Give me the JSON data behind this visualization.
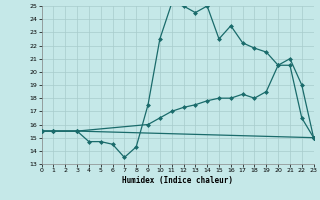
{
  "xlabel": "Humidex (Indice chaleur)",
  "xlim": [
    0,
    23
  ],
  "ylim": [
    13,
    25
  ],
  "xticks": [
    0,
    1,
    2,
    3,
    4,
    5,
    6,
    7,
    8,
    9,
    10,
    11,
    12,
    13,
    14,
    15,
    16,
    17,
    18,
    19,
    20,
    21,
    22,
    23
  ],
  "yticks": [
    13,
    14,
    15,
    16,
    17,
    18,
    19,
    20,
    21,
    22,
    23,
    24,
    25
  ],
  "bg_color": "#c5e8e8",
  "line_color": "#1a6b6b",
  "grid_color": "#a8cccc",
  "curve1_x": [
    0,
    1,
    3,
    4,
    5,
    6,
    7,
    8,
    9,
    10,
    11,
    12,
    13,
    14,
    15,
    16,
    17,
    18,
    19,
    20,
    21,
    22,
    23
  ],
  "curve1_y": [
    15.5,
    15.5,
    15.5,
    14.7,
    14.7,
    14.5,
    13.5,
    14.3,
    17.5,
    22.5,
    25.2,
    25.0,
    24.5,
    25.0,
    22.5,
    23.5,
    22.2,
    21.8,
    21.5,
    20.5,
    21.0,
    19.0,
    15.0
  ],
  "curve2_x": [
    0,
    1,
    3,
    9,
    10,
    11,
    12,
    13,
    14,
    15,
    16,
    17,
    18,
    19,
    20,
    21,
    22,
    23
  ],
  "curve2_y": [
    15.5,
    15.5,
    15.5,
    16.0,
    16.5,
    17.0,
    17.3,
    17.5,
    17.8,
    18.0,
    18.0,
    18.3,
    18.0,
    18.5,
    20.5,
    20.5,
    16.5,
    15.0
  ],
  "curve3_x": [
    0,
    1,
    3,
    23
  ],
  "curve3_y": [
    15.5,
    15.5,
    15.5,
    15.0
  ]
}
